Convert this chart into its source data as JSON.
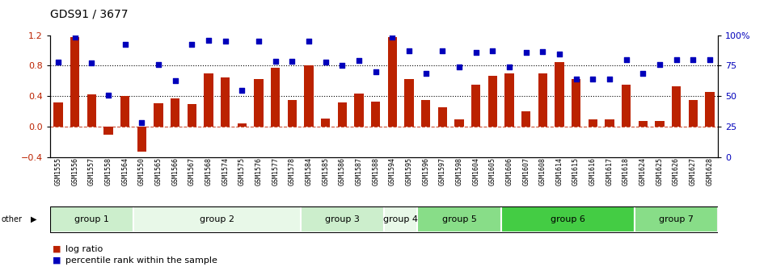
{
  "title": "GDS91 / 3677",
  "samples": [
    "GSM1555",
    "GSM1556",
    "GSM1557",
    "GSM1558",
    "GSM1564",
    "GSM1550",
    "GSM1565",
    "GSM1566",
    "GSM1567",
    "GSM1568",
    "GSM1574",
    "GSM1575",
    "GSM1576",
    "GSM1577",
    "GSM1578",
    "GSM1584",
    "GSM1585",
    "GSM1586",
    "GSM1587",
    "GSM1588",
    "GSM1594",
    "GSM1595",
    "GSM1596",
    "GSM1597",
    "GSM1598",
    "GSM1604",
    "GSM1605",
    "GSM1606",
    "GSM1607",
    "GSM1608",
    "GSM1614",
    "GSM1615",
    "GSM1616",
    "GSM1617",
    "GSM1618",
    "GSM1624",
    "GSM1625",
    "GSM1626",
    "GSM1627",
    "GSM1628"
  ],
  "log_ratio": [
    0.32,
    1.18,
    0.42,
    -0.1,
    0.4,
    -0.33,
    0.31,
    0.37,
    0.3,
    0.7,
    0.65,
    0.04,
    0.62,
    0.77,
    0.35,
    0.8,
    0.11,
    0.32,
    0.43,
    0.33,
    1.18,
    0.63,
    0.35,
    0.25,
    0.1,
    0.55,
    0.67,
    0.7,
    0.2,
    0.7,
    0.85,
    0.62,
    0.1,
    0.1,
    0.55,
    0.07,
    0.07,
    0.53,
    0.35,
    0.46
  ],
  "percentile_raw": [
    0.85,
    1.18,
    0.84,
    0.41,
    1.08,
    0.05,
    0.82,
    0.6,
    1.08,
    1.13,
    1.12,
    0.48,
    1.12,
    0.86,
    0.86,
    1.12,
    0.85,
    0.8,
    0.87,
    0.72,
    1.18,
    1.0,
    0.7,
    1.0,
    0.78,
    0.97,
    1.0,
    0.78,
    0.97,
    0.98,
    0.95,
    0.62,
    0.62,
    0.62,
    0.88,
    0.7,
    0.82,
    0.88,
    0.88,
    0.88
  ],
  "groups": [
    {
      "name": "group 1",
      "start": 0,
      "end": 5,
      "color": "#cceecc"
    },
    {
      "name": "group 2",
      "start": 5,
      "end": 15,
      "color": "#e8f8e8"
    },
    {
      "name": "group 3",
      "start": 15,
      "end": 20,
      "color": "#cceecc"
    },
    {
      "name": "group 4",
      "start": 20,
      "end": 22,
      "color": "#e8f8e8"
    },
    {
      "name": "group 5",
      "start": 22,
      "end": 27,
      "color": "#88dd88"
    },
    {
      "name": "group 6",
      "start": 27,
      "end": 35,
      "color": "#44cc44"
    },
    {
      "name": "group 7",
      "start": 35,
      "end": 40,
      "color": "#88dd88"
    }
  ],
  "bar_color": "#bb2200",
  "dot_color": "#0000bb",
  "ylim_left": [
    -0.4,
    1.2
  ],
  "left_yticks": [
    -0.4,
    0.0,
    0.4,
    0.8,
    1.2
  ],
  "right_yticks": [
    0,
    25,
    50,
    75,
    100
  ],
  "right_yticklabels": [
    "0",
    "25",
    "50",
    "75",
    "100%"
  ],
  "hlines": [
    0.0,
    0.4,
    0.8
  ],
  "legend_entries": [
    "log ratio",
    "percentile rank within the sample"
  ]
}
